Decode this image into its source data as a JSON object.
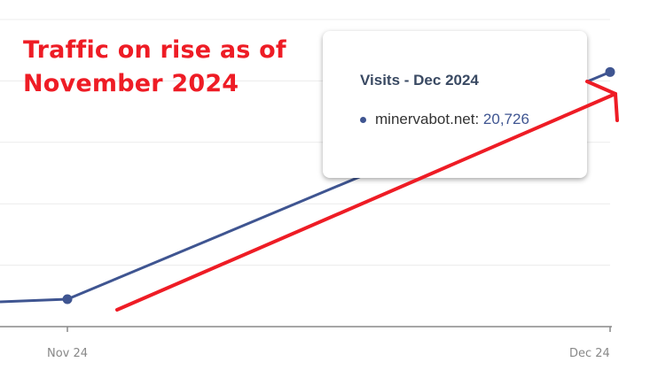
{
  "annotation": {
    "line1": "Traffic on rise as of",
    "line2": "November 2024",
    "color": "#ee1c25"
  },
  "chart_data": {
    "type": "line",
    "categories": [
      "Nov 24",
      "Dec 24"
    ],
    "series": [
      {
        "name": "minervabot.net",
        "values": [
          2230,
          20726
        ],
        "color": "#3f5591"
      }
    ],
    "ylim": [
      0,
      25000
    ],
    "grid": true,
    "y_tick_labels_shown": false
  },
  "tooltip": {
    "title": "Visits - Dec 2024",
    "series_label": "minervabot.net:",
    "value": "20,726"
  }
}
